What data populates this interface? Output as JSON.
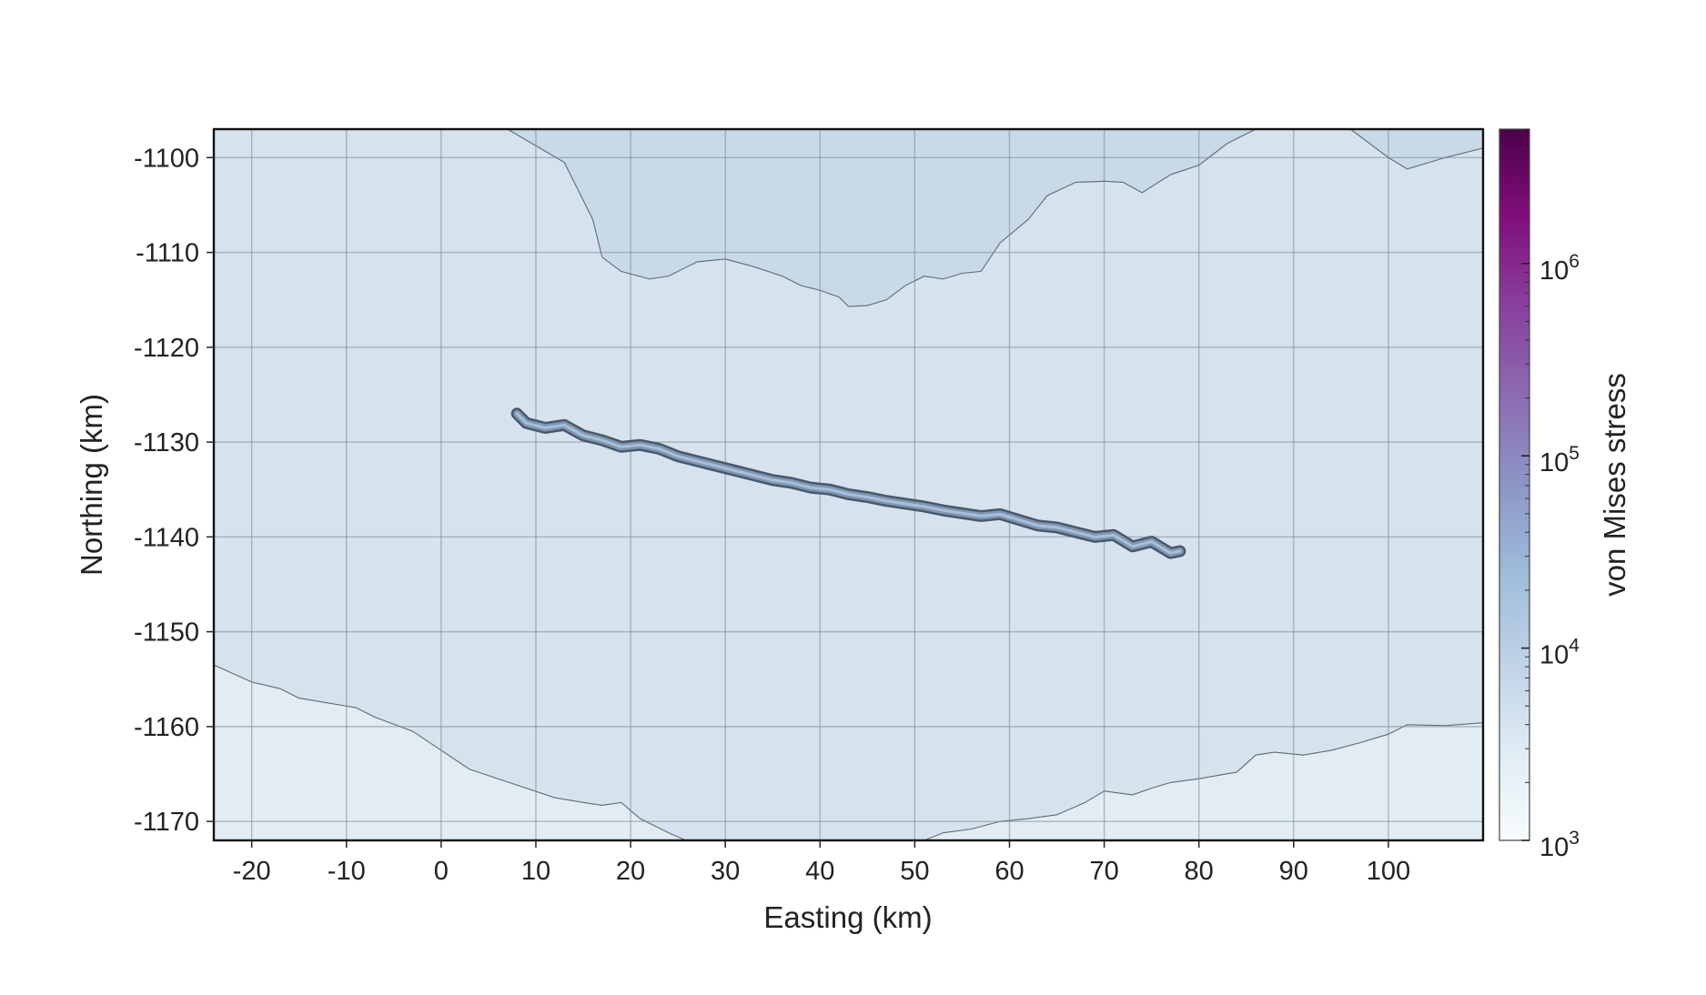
{
  "chart_data": {
    "type": "contour",
    "xlabel": "Easting (km)",
    "ylabel": "Northing (km)",
    "xlim": [
      -24,
      110
    ],
    "ylim": [
      -1172,
      -1097
    ],
    "xticks": [
      -20,
      -10,
      0,
      10,
      20,
      30,
      40,
      50,
      60,
      70,
      80,
      90,
      100
    ],
    "xtick_labels": [
      "-20",
      "-10",
      "0",
      "10",
      "20",
      "30",
      "40",
      "50",
      "60",
      "70",
      "80",
      "90",
      "100"
    ],
    "yticks": [
      -1100,
      -1110,
      -1120,
      -1130,
      -1140,
      -1150,
      -1160,
      -1170
    ],
    "ytick_labels": [
      "-1100",
      "-1110",
      "-1120",
      "-1130",
      "-1140",
      "-1150",
      "-1160",
      "-1170"
    ],
    "grid": true,
    "regions": [
      {
        "name": "upper",
        "color": "#c8d9e8",
        "points": [
          [
            7,
            -1097
          ],
          [
            13,
            -1100.5
          ],
          [
            15,
            -1104.5
          ],
          [
            16,
            -1106.5
          ],
          [
            17,
            -1110.5
          ],
          [
            19,
            -1112
          ],
          [
            22,
            -1112.8
          ],
          [
            24,
            -1112.5
          ],
          [
            27,
            -1111
          ],
          [
            30,
            -1110.7
          ],
          [
            33,
            -1111.5
          ],
          [
            36,
            -1112.5
          ],
          [
            38,
            -1113.5
          ],
          [
            40,
            -1114
          ],
          [
            42,
            -1114.7
          ],
          [
            43,
            -1115.7
          ],
          [
            45,
            -1115.6
          ],
          [
            47,
            -1115
          ],
          [
            49,
            -1113.5
          ],
          [
            51,
            -1112.5
          ],
          [
            53,
            -1112.8
          ],
          [
            55,
            -1112.2
          ],
          [
            57,
            -1112
          ],
          [
            59,
            -1109
          ],
          [
            62,
            -1106.5
          ],
          [
            64,
            -1104
          ],
          [
            67,
            -1102.6
          ],
          [
            70,
            -1102.5
          ],
          [
            72,
            -1102.6
          ],
          [
            74,
            -1103.7
          ],
          [
            77,
            -1101.8
          ],
          [
            80,
            -1100.8
          ],
          [
            83,
            -1098.5
          ],
          [
            86,
            -1097
          ],
          [
            96,
            -1097
          ],
          [
            100,
            -1100
          ],
          [
            102,
            -1101.2
          ],
          [
            106,
            -1100
          ],
          [
            110,
            -1099
          ]
        ]
      },
      {
        "name": "lower",
        "color": "#e2ecf3",
        "points": [
          [
            -24,
            -1153.5
          ],
          [
            -20,
            -1155.3
          ],
          [
            -17,
            -1156
          ],
          [
            -15,
            -1157
          ],
          [
            -12,
            -1157.5
          ],
          [
            -9,
            -1158
          ],
          [
            -7,
            -1159
          ],
          [
            -3,
            -1160.5
          ],
          [
            0,
            -1162.5
          ],
          [
            3,
            -1164.5
          ],
          [
            6,
            -1165.5
          ],
          [
            9,
            -1166.5
          ],
          [
            12,
            -1167.5
          ],
          [
            15,
            -1168
          ],
          [
            17,
            -1168.3
          ],
          [
            19,
            -1168
          ],
          [
            21,
            -1169.7
          ],
          [
            24,
            -1171.2
          ],
          [
            27,
            -1172.5
          ],
          [
            49,
            -1172.5
          ],
          [
            51,
            -1172
          ],
          [
            53,
            -1171.2
          ],
          [
            56,
            -1170.8
          ],
          [
            59,
            -1170
          ],
          [
            62,
            -1169.7
          ],
          [
            65,
            -1169.3
          ],
          [
            68,
            -1168
          ],
          [
            70,
            -1166.8
          ],
          [
            73,
            -1167.2
          ],
          [
            75,
            -1166.5
          ],
          [
            77,
            -1165.9
          ],
          [
            80,
            -1165.5
          ],
          [
            84,
            -1164.8
          ],
          [
            86,
            -1163
          ],
          [
            88,
            -1162.7
          ],
          [
            91,
            -1163
          ],
          [
            94,
            -1162.5
          ],
          [
            97,
            -1161.7
          ],
          [
            100,
            -1160.8
          ],
          [
            102,
            -1159.8
          ],
          [
            106,
            -1159.9
          ],
          [
            110,
            -1159.6
          ]
        ]
      }
    ],
    "fault_trace": [
      [
        8,
        -1127
      ],
      [
        9,
        -1128
      ],
      [
        11,
        -1128.5
      ],
      [
        13,
        -1128.2
      ],
      [
        15,
        -1129.3
      ],
      [
        17,
        -1129.8
      ],
      [
        19,
        -1130.5
      ],
      [
        21,
        -1130.3
      ],
      [
        23,
        -1130.7
      ],
      [
        25,
        -1131.5
      ],
      [
        27,
        -1132
      ],
      [
        29,
        -1132.5
      ],
      [
        31,
        -1133
      ],
      [
        33,
        -1133.5
      ],
      [
        35,
        -1134
      ],
      [
        37,
        -1134.3
      ],
      [
        39,
        -1134.8
      ],
      [
        41,
        -1135
      ],
      [
        43,
        -1135.5
      ],
      [
        45,
        -1135.8
      ],
      [
        47,
        -1136.2
      ],
      [
        49,
        -1136.5
      ],
      [
        51,
        -1136.8
      ],
      [
        53,
        -1137.2
      ],
      [
        55,
        -1137.5
      ],
      [
        57,
        -1137.8
      ],
      [
        59,
        -1137.6
      ],
      [
        61,
        -1138.2
      ],
      [
        63,
        -1138.8
      ],
      [
        65,
        -1139
      ],
      [
        67,
        -1139.5
      ],
      [
        69,
        -1140
      ],
      [
        71,
        -1139.8
      ],
      [
        73,
        -1141
      ],
      [
        75,
        -1140.5
      ],
      [
        77,
        -1141.7
      ],
      [
        78,
        -1141.5
      ]
    ],
    "colorbar": {
      "label": "von Mises stress",
      "scale": "log",
      "range": [
        1000,
        5000000
      ],
      "ticks": [
        1000,
        10000,
        100000,
        1000000
      ],
      "tick_base": "10",
      "tick_exponents": [
        "3",
        "4",
        "5",
        "6"
      ],
      "colormap": [
        "#f7fcfd",
        "#e0ecf4",
        "#bfd3e6",
        "#9ebcda",
        "#8c96c6",
        "#8c6bb1",
        "#88419d",
        "#810f7c",
        "#4d004b"
      ]
    },
    "colors": {
      "background_region": "#d6e3ee",
      "upper_region": "#c8d9e8",
      "lower_region": "#e2ecf3",
      "contour_line": "#5f6a74",
      "fault_outer": "#4a5868",
      "fault_mid": "#7e97b3",
      "fault_inner": "#a7c0da"
    }
  }
}
